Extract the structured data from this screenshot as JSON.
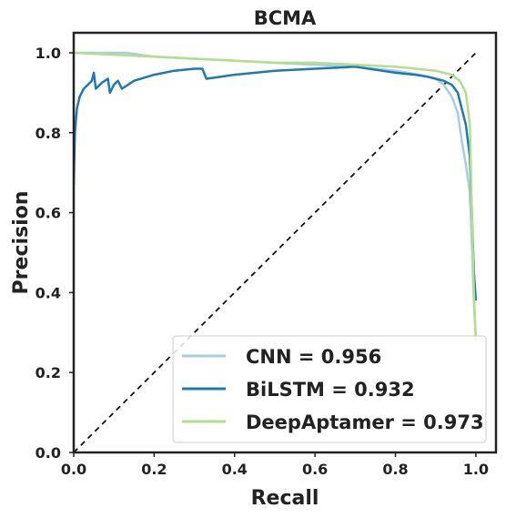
{
  "chart_data": {
    "type": "line",
    "title": "BCMA",
    "xlabel": "Recall",
    "ylabel": "Precision",
    "xlim": [
      0,
      1.05
    ],
    "ylim": [
      0,
      1.05
    ],
    "xticks": [
      "0.0",
      "0.2",
      "0.4",
      "0.6",
      "0.8",
      "1.0"
    ],
    "yticks": [
      "0.0",
      "0.2",
      "0.4",
      "0.6",
      "0.8",
      "1.0"
    ],
    "grid": false,
    "legend_position": "lower-right",
    "baseline": {
      "style": "dashed",
      "color": "#111111",
      "points": [
        [
          0,
          0
        ],
        [
          1,
          1
        ]
      ]
    },
    "series": [
      {
        "name": "CNN = 0.956",
        "color": "#a6cee3",
        "x": [
          0.0,
          0.05,
          0.13,
          0.2,
          0.3,
          0.4,
          0.5,
          0.6,
          0.7,
          0.8,
          0.86,
          0.9,
          0.92,
          0.94,
          0.955,
          0.965,
          0.975,
          0.985,
          0.99,
          0.995,
          1.0
        ],
        "y": [
          1.0,
          1.0,
          1.0,
          0.99,
          0.985,
          0.98,
          0.975,
          0.97,
          0.965,
          0.955,
          0.945,
          0.935,
          0.92,
          0.89,
          0.85,
          0.78,
          0.72,
          0.65,
          0.52,
          0.38,
          0.28
        ]
      },
      {
        "name": "BiLSTM = 0.932",
        "color": "#1f78b4",
        "x": [
          0.0,
          0.003,
          0.008,
          0.015,
          0.025,
          0.035,
          0.045,
          0.05,
          0.055,
          0.07,
          0.085,
          0.09,
          0.1,
          0.11,
          0.12,
          0.15,
          0.2,
          0.25,
          0.3,
          0.32,
          0.33,
          0.4,
          0.5,
          0.6,
          0.7,
          0.8,
          0.85,
          0.88,
          0.9,
          0.92,
          0.94,
          0.955,
          0.965,
          0.975,
          0.985,
          0.99,
          0.995,
          1.0
        ],
        "y": [
          0.67,
          0.8,
          0.86,
          0.89,
          0.91,
          0.92,
          0.93,
          0.95,
          0.91,
          0.925,
          0.935,
          0.9,
          0.92,
          0.93,
          0.91,
          0.93,
          0.945,
          0.955,
          0.96,
          0.96,
          0.935,
          0.945,
          0.955,
          0.96,
          0.965,
          0.95,
          0.945,
          0.94,
          0.935,
          0.93,
          0.92,
          0.9,
          0.86,
          0.82,
          0.74,
          0.6,
          0.45,
          0.38
        ]
      },
      {
        "name": "DeepAptamer = 0.973",
        "color": "#b2df8a",
        "x": [
          0.0,
          0.1,
          0.2,
          0.3,
          0.4,
          0.5,
          0.6,
          0.7,
          0.8,
          0.85,
          0.9,
          0.94,
          0.96,
          0.975,
          0.985,
          0.99,
          0.995,
          1.0
        ],
        "y": [
          1.0,
          0.995,
          0.99,
          0.985,
          0.98,
          0.975,
          0.975,
          0.97,
          0.965,
          0.96,
          0.955,
          0.945,
          0.93,
          0.9,
          0.82,
          0.6,
          0.4,
          0.28
        ]
      }
    ]
  }
}
